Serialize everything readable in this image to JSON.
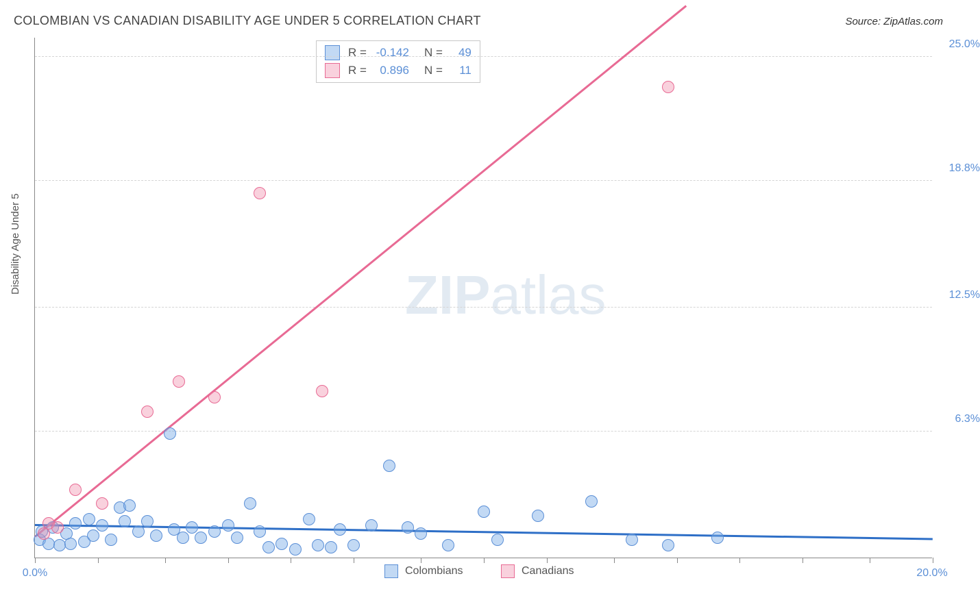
{
  "header": {
    "title": "COLOMBIAN VS CANADIAN DISABILITY AGE UNDER 5 CORRELATION CHART",
    "source": "Source: ZipAtlas.com"
  },
  "y_axis_label": "Disability Age Under 5",
  "watermark": {
    "bold": "ZIP",
    "rest": "atlas"
  },
  "chart": {
    "type": "scatter",
    "xlim": [
      0,
      20
    ],
    "ylim": [
      0,
      26
    ],
    "y_ticks": [
      {
        "value": 6.3,
        "label": "6.3%"
      },
      {
        "value": 12.5,
        "label": "12.5%"
      },
      {
        "value": 18.8,
        "label": "18.8%"
      },
      {
        "value": 25.0,
        "label": "25.0%"
      }
    ],
    "x_tick_positions": [
      0,
      1.4,
      2.9,
      4.3,
      5.7,
      7.1,
      8.6,
      10.0,
      11.4,
      12.9,
      14.3,
      15.7,
      17.1,
      18.6,
      20
    ],
    "x_label_start": "0.0%",
    "x_label_end": "20.0%",
    "grid_color": "#d5d5d5",
    "background_color": "#ffffff",
    "axis_color": "#888888",
    "tick_label_color": "#5b8fd6",
    "point_radius": 9,
    "series": [
      {
        "name": "Colombians",
        "fill": "rgba(120,170,230,0.45)",
        "stroke": "#5b8fd6",
        "trend_color": "#2e6fc7",
        "R": "-0.142",
        "N": "49",
        "trend": {
          "x1": 0,
          "y1": 1.6,
          "x2": 20,
          "y2": 0.9
        },
        "points": [
          [
            0.1,
            0.9
          ],
          [
            0.15,
            1.3
          ],
          [
            0.3,
            0.7
          ],
          [
            0.4,
            1.5
          ],
          [
            0.55,
            0.6
          ],
          [
            0.7,
            1.2
          ],
          [
            0.8,
            0.7
          ],
          [
            0.9,
            1.7
          ],
          [
            1.1,
            0.8
          ],
          [
            1.2,
            1.9
          ],
          [
            1.3,
            1.1
          ],
          [
            1.5,
            1.6
          ],
          [
            1.7,
            0.9
          ],
          [
            1.9,
            2.5
          ],
          [
            2.0,
            1.8
          ],
          [
            2.1,
            2.6
          ],
          [
            2.3,
            1.3
          ],
          [
            2.5,
            1.8
          ],
          [
            2.7,
            1.1
          ],
          [
            3.0,
            6.2
          ],
          [
            3.1,
            1.4
          ],
          [
            3.3,
            1.0
          ],
          [
            3.5,
            1.5
          ],
          [
            3.7,
            1.0
          ],
          [
            4.0,
            1.3
          ],
          [
            4.3,
            1.6
          ],
          [
            4.5,
            1.0
          ],
          [
            4.8,
            2.7
          ],
          [
            5.0,
            1.3
          ],
          [
            5.2,
            0.5
          ],
          [
            5.5,
            0.7
          ],
          [
            5.8,
            0.4
          ],
          [
            6.1,
            1.9
          ],
          [
            6.3,
            0.6
          ],
          [
            6.6,
            0.5
          ],
          [
            6.8,
            1.4
          ],
          [
            7.1,
            0.6
          ],
          [
            7.5,
            1.6
          ],
          [
            7.9,
            4.6
          ],
          [
            8.3,
            1.5
          ],
          [
            8.6,
            1.2
          ],
          [
            9.2,
            0.6
          ],
          [
            10.0,
            2.3
          ],
          [
            10.3,
            0.9
          ],
          [
            11.2,
            2.1
          ],
          [
            12.4,
            2.8
          ],
          [
            13.3,
            0.9
          ],
          [
            14.1,
            0.6
          ],
          [
            15.2,
            1.0
          ]
        ]
      },
      {
        "name": "Canadians",
        "fill": "rgba(240,140,170,0.40)",
        "stroke": "#e86a94",
        "trend_color": "#e86a94",
        "R": "0.896",
        "N": "11",
        "trend": {
          "x1": 0,
          "y1": 1.0,
          "x2": 14.5,
          "y2": 27.5
        },
        "points": [
          [
            0.2,
            1.2
          ],
          [
            0.3,
            1.7
          ],
          [
            0.5,
            1.5
          ],
          [
            0.9,
            3.4
          ],
          [
            1.5,
            2.7
          ],
          [
            2.5,
            7.3
          ],
          [
            3.2,
            8.8
          ],
          [
            4.0,
            8.0
          ],
          [
            5.0,
            18.2
          ],
          [
            6.4,
            8.3
          ],
          [
            14.1,
            23.5
          ]
        ]
      }
    ]
  },
  "legend": {
    "items": [
      {
        "label": "Colombians",
        "fill": "rgba(120,170,230,0.45)",
        "stroke": "#5b8fd6"
      },
      {
        "label": "Canadians",
        "fill": "rgba(240,140,170,0.40)",
        "stroke": "#e86a94"
      }
    ]
  }
}
